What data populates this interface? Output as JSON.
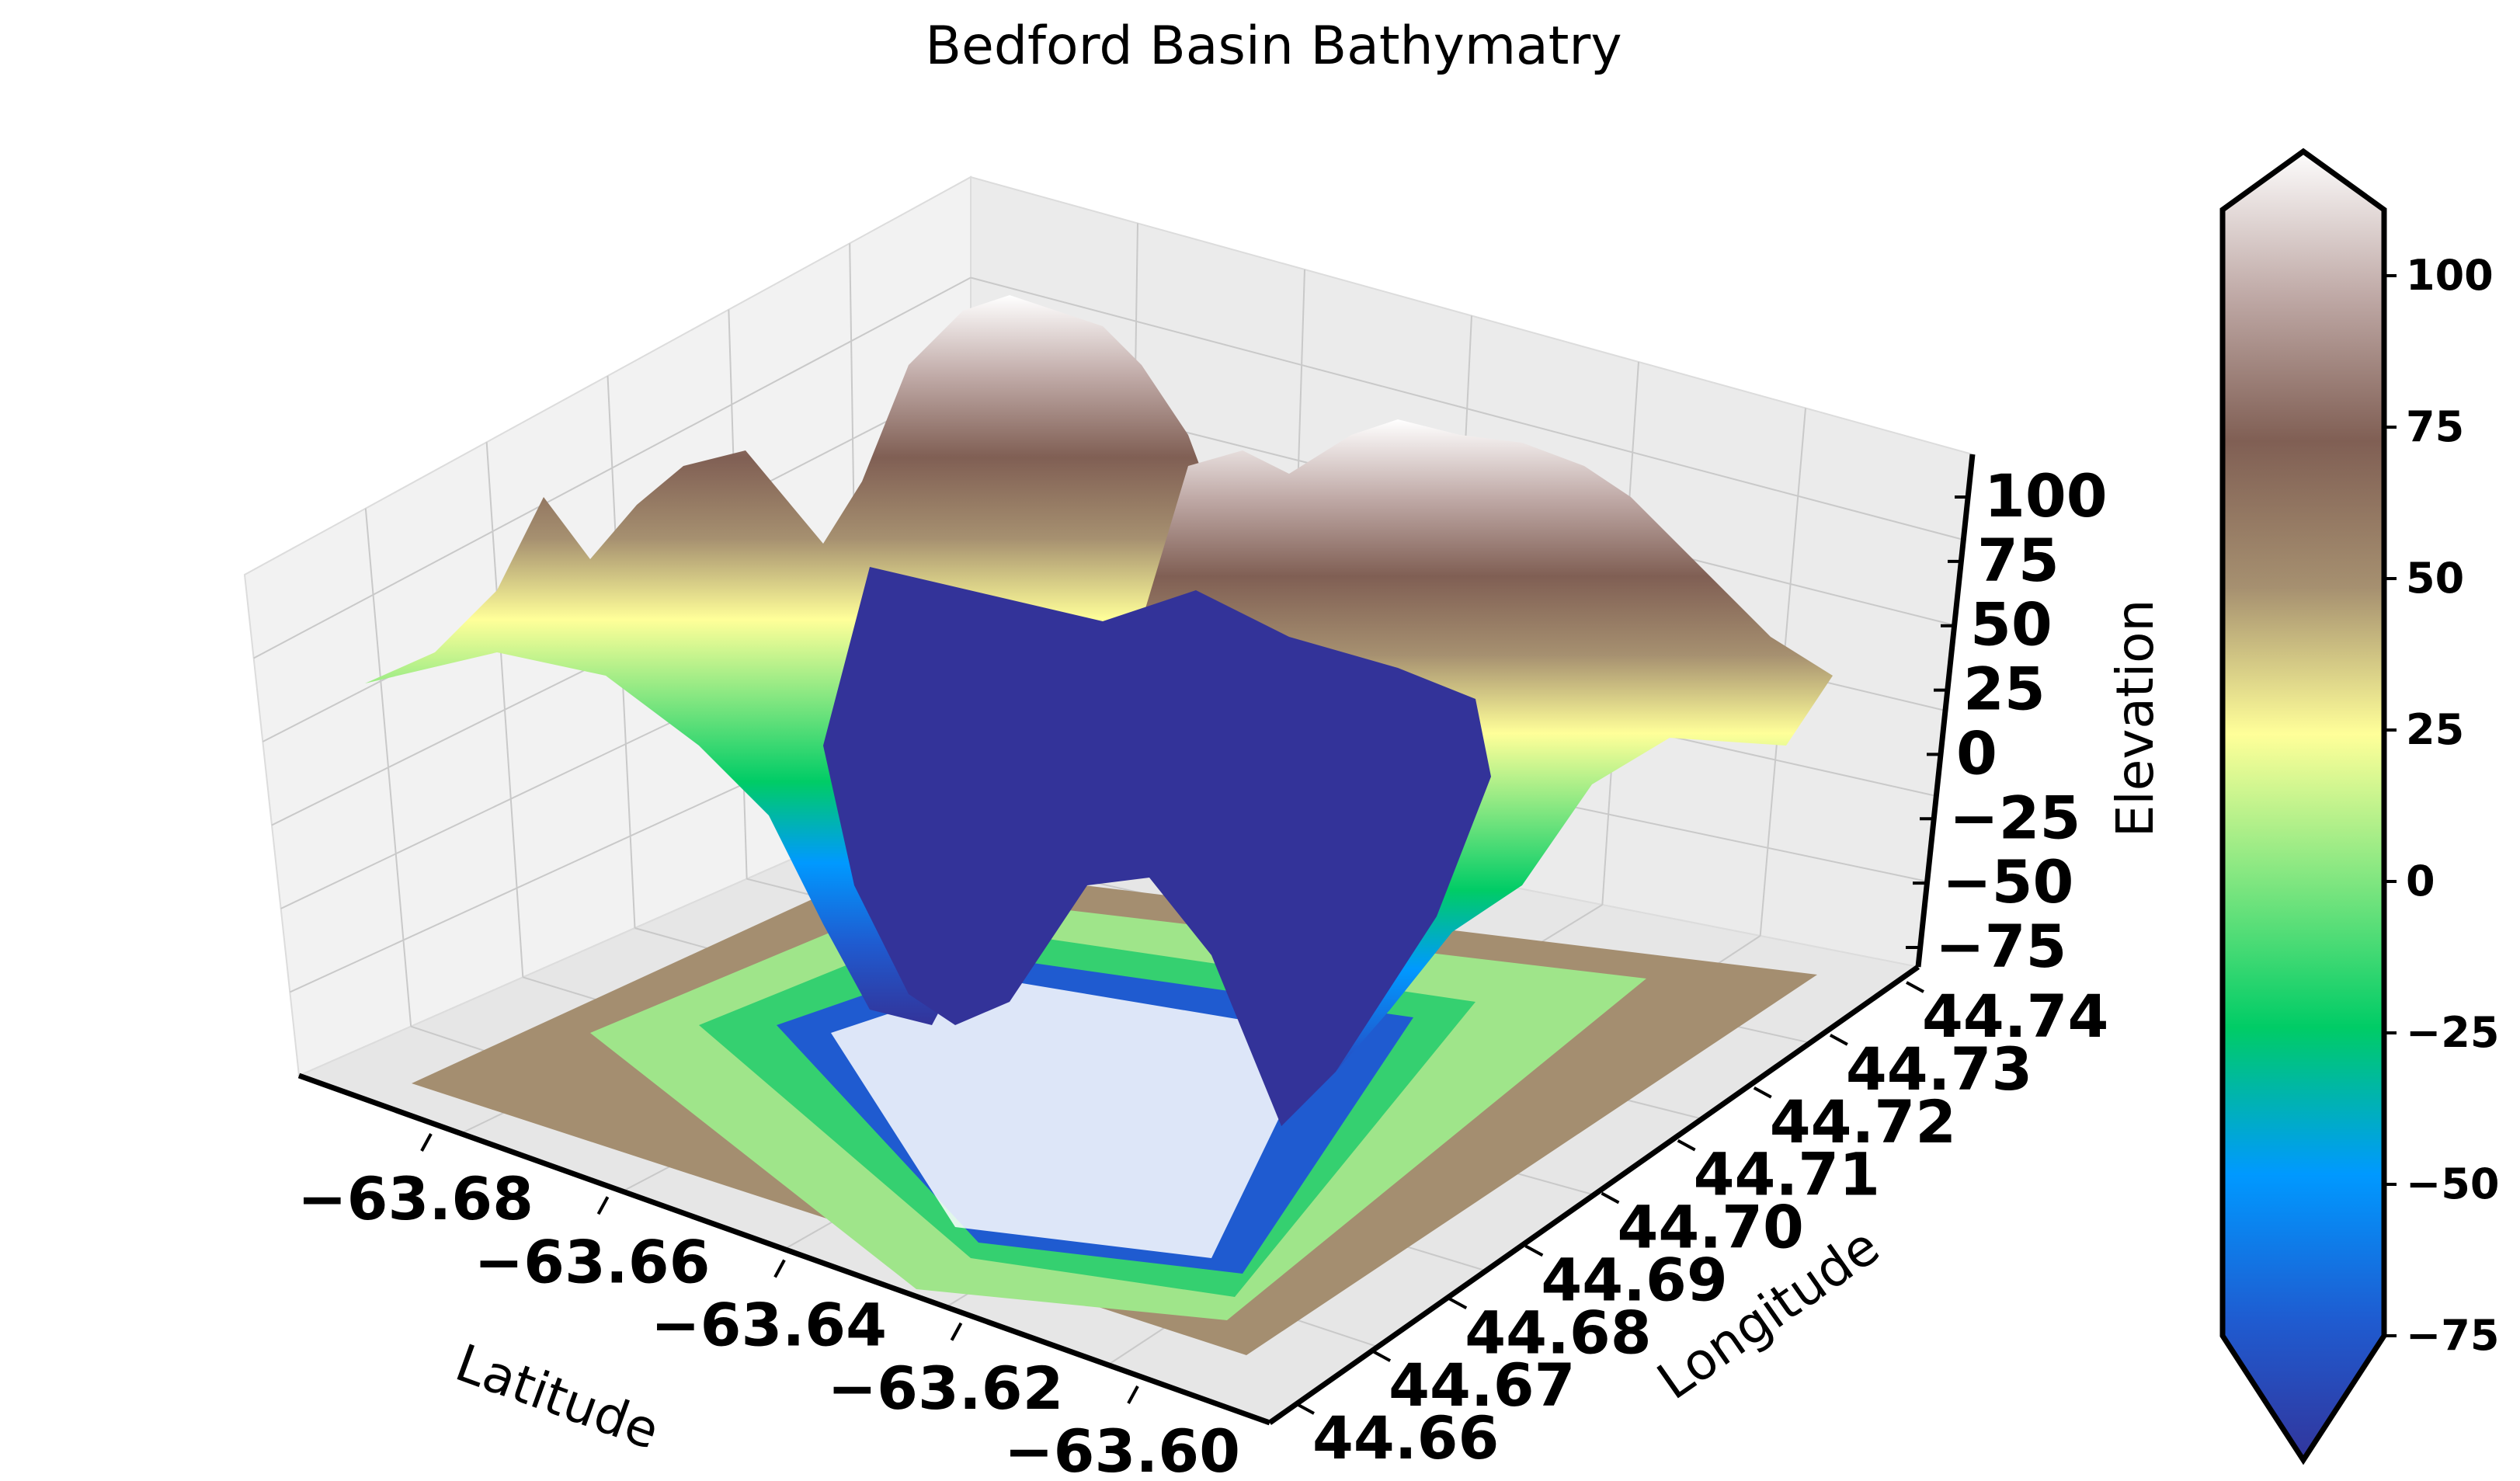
{
  "chart_data": {
    "type": "surface3d",
    "title": "Bedford Basin Bathymatry",
    "xlabel": "Latitude",
    "ylabel": "Longitude",
    "zlabel": "Elevation",
    "x_ticks": [
      "−63.68",
      "−63.66",
      "−63.64",
      "−63.62",
      "−63.60"
    ],
    "y_ticks": [
      "44.66",
      "44.67",
      "44.68",
      "44.69",
      "44.70",
      "44.71",
      "44.72",
      "44.73",
      "44.74"
    ],
    "z_ticks": [
      "−75",
      "−50",
      "−25",
      "0",
      "25",
      "50",
      "75",
      "100"
    ],
    "xlim": [
      -63.69,
      -63.595
    ],
    "ylim": [
      44.66,
      44.74
    ],
    "zlim": [
      -75,
      110
    ],
    "colormap": "terrain",
    "colorbar": {
      "ticks": [
        "−75",
        "−50",
        "−25",
        "0",
        "25",
        "50",
        "75",
        "100"
      ],
      "range": [
        -80,
        110
      ],
      "extend": "both",
      "colors": [
        "#333399",
        "#1f5bd0",
        "#0099ff",
        "#00cc66",
        "#80e680",
        "#ffff99",
        "#a69070",
        "#805f54",
        "#c0aaa7",
        "#ffffff"
      ]
    },
    "surface": {
      "central_trough_elevation": -75,
      "max_elevation": 110,
      "floor_contour_levels": 10
    },
    "grid": true
  }
}
